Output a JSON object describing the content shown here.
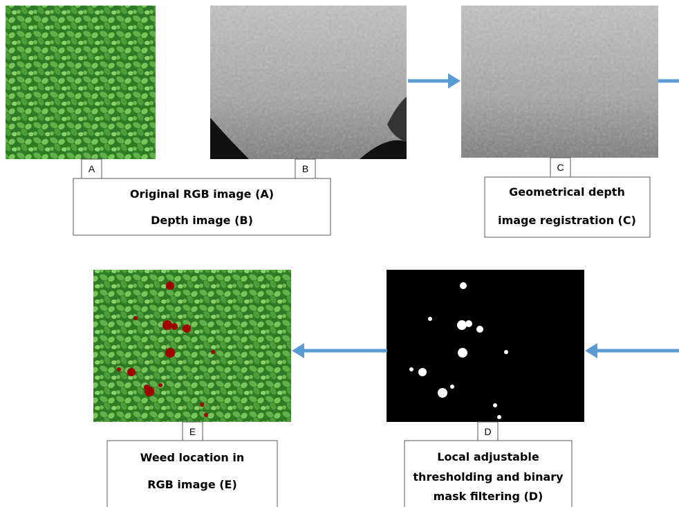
{
  "panel_labels": [
    "A",
    "B",
    "C",
    "D",
    "E"
  ],
  "captions": [
    {
      "lines": [
        "Original RGB image (A)",
        "Depth image (B)"
      ]
    },
    {
      "lines": [
        "Geometrical depth",
        "image registration (C)"
      ]
    },
    {
      "lines": [
        "Local adjustable",
        "thresholding and binary",
        "mask filtering  (D)"
      ]
    },
    {
      "lines": [
        "Weed location in",
        "RGB image  (E)"
      ]
    }
  ]
}
